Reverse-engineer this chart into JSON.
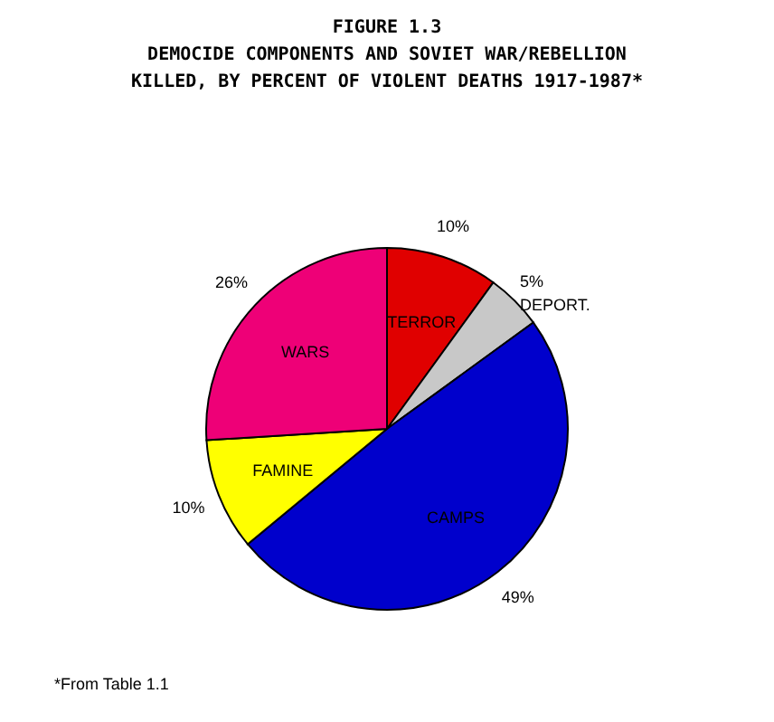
{
  "chart_data": {
    "type": "pie",
    "title": [
      "FIGURE 1.3",
      "DEMOCIDE COMPONENTS AND SOVIET WAR/REBELLION",
      "KILLED, BY PERCENT OF VIOLENT DEATHS 1917-1987*"
    ],
    "categories": [
      "TERROR",
      "DEPORT.",
      "CAMPS",
      "FAMINE",
      "WARS"
    ],
    "values": [
      10,
      5,
      49,
      10,
      26
    ],
    "colors": [
      "#e00000",
      "#c8c8c8",
      "#0000cc",
      "#ffff00",
      "#ee0077"
    ],
    "value_labels": [
      "10%",
      "5%",
      "49%",
      "10%",
      "26%"
    ],
    "annotations": [
      "*From Table 1.1"
    ]
  }
}
